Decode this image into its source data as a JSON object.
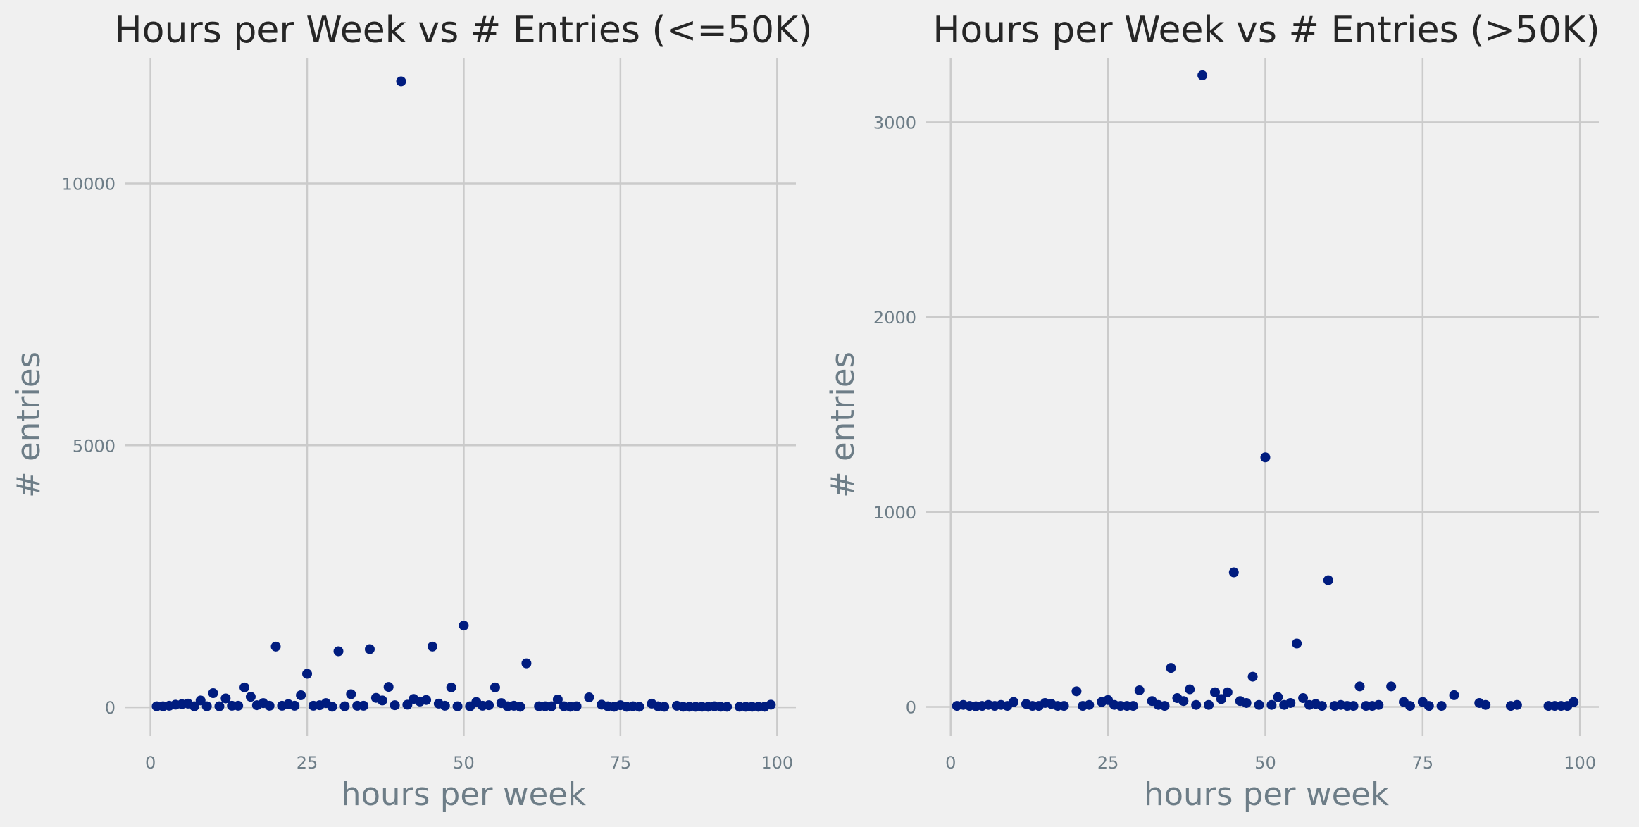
{
  "colors": {
    "background": "#f0f0f0",
    "grid": "#cbcbcb",
    "point": "#001c7f",
    "title": "#262626",
    "axis_text": "#6d7d87"
  },
  "chart_data": [
    {
      "type": "scatter",
      "title": "Hours per Week vs # Entries (<=50K)",
      "xlabel": "hours per week",
      "ylabel": "# entries",
      "xlim": [
        -4,
        103
      ],
      "ylim": [
        -550,
        12400
      ],
      "xticks": [
        0,
        25,
        50,
        75,
        100
      ],
      "yticks": [
        0,
        5000,
        10000
      ],
      "xtick_labels": [
        "0",
        "25",
        "50",
        "75",
        "100"
      ],
      "ytick_labels": [
        "0",
        "5000",
        "10000"
      ],
      "grid": true,
      "points": [
        [
          1,
          20
        ],
        [
          2,
          20
        ],
        [
          3,
          30
        ],
        [
          4,
          50
        ],
        [
          5,
          60
        ],
        [
          6,
          70
        ],
        [
          7,
          20
        ],
        [
          8,
          130
        ],
        [
          9,
          20
        ],
        [
          10,
          270
        ],
        [
          11,
          20
        ],
        [
          12,
          170
        ],
        [
          13,
          30
        ],
        [
          14,
          30
        ],
        [
          15,
          380
        ],
        [
          16,
          200
        ],
        [
          17,
          40
        ],
        [
          18,
          80
        ],
        [
          19,
          30
        ],
        [
          20,
          1160
        ],
        [
          21,
          30
        ],
        [
          22,
          60
        ],
        [
          23,
          30
        ],
        [
          24,
          230
        ],
        [
          25,
          640
        ],
        [
          26,
          30
        ],
        [
          27,
          40
        ],
        [
          28,
          80
        ],
        [
          29,
          10
        ],
        [
          30,
          1070
        ],
        [
          31,
          20
        ],
        [
          32,
          250
        ],
        [
          33,
          30
        ],
        [
          34,
          30
        ],
        [
          35,
          1110
        ],
        [
          36,
          180
        ],
        [
          37,
          130
        ],
        [
          38,
          390
        ],
        [
          39,
          40
        ],
        [
          40,
          11950
        ],
        [
          41,
          50
        ],
        [
          42,
          160
        ],
        [
          43,
          110
        ],
        [
          44,
          140
        ],
        [
          45,
          1160
        ],
        [
          46,
          70
        ],
        [
          47,
          30
        ],
        [
          48,
          380
        ],
        [
          49,
          20
        ],
        [
          50,
          1560
        ],
        [
          51,
          20
        ],
        [
          52,
          100
        ],
        [
          53,
          30
        ],
        [
          54,
          40
        ],
        [
          55,
          380
        ],
        [
          56,
          80
        ],
        [
          57,
          20
        ],
        [
          58,
          30
        ],
        [
          59,
          10
        ],
        [
          60,
          840
        ],
        [
          62,
          20
        ],
        [
          63,
          20
        ],
        [
          64,
          20
        ],
        [
          65,
          150
        ],
        [
          66,
          20
        ],
        [
          67,
          10
        ],
        [
          68,
          20
        ],
        [
          70,
          190
        ],
        [
          72,
          50
        ],
        [
          73,
          20
        ],
        [
          74,
          10
        ],
        [
          75,
          40
        ],
        [
          76,
          10
        ],
        [
          77,
          20
        ],
        [
          78,
          10
        ],
        [
          80,
          70
        ],
        [
          81,
          20
        ],
        [
          82,
          10
        ],
        [
          84,
          30
        ],
        [
          85,
          10
        ],
        [
          86,
          10
        ],
        [
          87,
          10
        ],
        [
          88,
          10
        ],
        [
          89,
          10
        ],
        [
          90,
          20
        ],
        [
          91,
          10
        ],
        [
          92,
          10
        ],
        [
          94,
          10
        ],
        [
          95,
          10
        ],
        [
          96,
          10
        ],
        [
          97,
          10
        ],
        [
          98,
          10
        ],
        [
          99,
          50
        ]
      ]
    },
    {
      "type": "scatter",
      "title": "Hours per Week vs # Entries (>50K)",
      "xlabel": "hours per week",
      "ylabel": "# entries",
      "xlim": [
        -4,
        103
      ],
      "ylim": [
        -150,
        3330
      ],
      "xticks": [
        0,
        25,
        50,
        75,
        100
      ],
      "yticks": [
        0,
        1000,
        2000,
        3000
      ],
      "xtick_labels": [
        "0",
        "25",
        "50",
        "75",
        "100"
      ],
      "ytick_labels": [
        "0",
        "1000",
        "2000",
        "3000"
      ],
      "grid": true,
      "points": [
        [
          1,
          5
        ],
        [
          2,
          10
        ],
        [
          3,
          5
        ],
        [
          4,
          3
        ],
        [
          5,
          5
        ],
        [
          6,
          10
        ],
        [
          7,
          5
        ],
        [
          8,
          10
        ],
        [
          9,
          5
        ],
        [
          10,
          25
        ],
        [
          12,
          15
        ],
        [
          13,
          5
        ],
        [
          14,
          5
        ],
        [
          15,
          20
        ],
        [
          16,
          15
        ],
        [
          17,
          5
        ],
        [
          18,
          5
        ],
        [
          20,
          80
        ],
        [
          21,
          5
        ],
        [
          22,
          10
        ],
        [
          24,
          25
        ],
        [
          25,
          35
        ],
        [
          26,
          10
        ],
        [
          27,
          5
        ],
        [
          28,
          5
        ],
        [
          29,
          5
        ],
        [
          30,
          85
        ],
        [
          32,
          30
        ],
        [
          33,
          10
        ],
        [
          34,
          5
        ],
        [
          35,
          200
        ],
        [
          36,
          45
        ],
        [
          37,
          30
        ],
        [
          38,
          90
        ],
        [
          39,
          10
        ],
        [
          40,
          3240
        ],
        [
          41,
          10
        ],
        [
          42,
          75
        ],
        [
          43,
          40
        ],
        [
          44,
          75
        ],
        [
          45,
          690
        ],
        [
          46,
          30
        ],
        [
          47,
          20
        ],
        [
          48,
          155
        ],
        [
          49,
          10
        ],
        [
          50,
          1280
        ],
        [
          51,
          10
        ],
        [
          52,
          50
        ],
        [
          53,
          10
        ],
        [
          54,
          20
        ],
        [
          55,
          325
        ],
        [
          56,
          45
        ],
        [
          57,
          10
        ],
        [
          58,
          15
        ],
        [
          59,
          5
        ],
        [
          60,
          650
        ],
        [
          61,
          5
        ],
        [
          62,
          10
        ],
        [
          63,
          5
        ],
        [
          64,
          5
        ],
        [
          65,
          105
        ],
        [
          66,
          5
        ],
        [
          67,
          5
        ],
        [
          68,
          10
        ],
        [
          70,
          105
        ],
        [
          72,
          25
        ],
        [
          73,
          5
        ],
        [
          75,
          25
        ],
        [
          76,
          5
        ],
        [
          78,
          5
        ],
        [
          80,
          60
        ],
        [
          84,
          20
        ],
        [
          85,
          10
        ],
        [
          89,
          5
        ],
        [
          90,
          10
        ],
        [
          95,
          5
        ],
        [
          96,
          5
        ],
        [
          97,
          5
        ],
        [
          98,
          5
        ],
        [
          99,
          25
        ]
      ]
    }
  ]
}
